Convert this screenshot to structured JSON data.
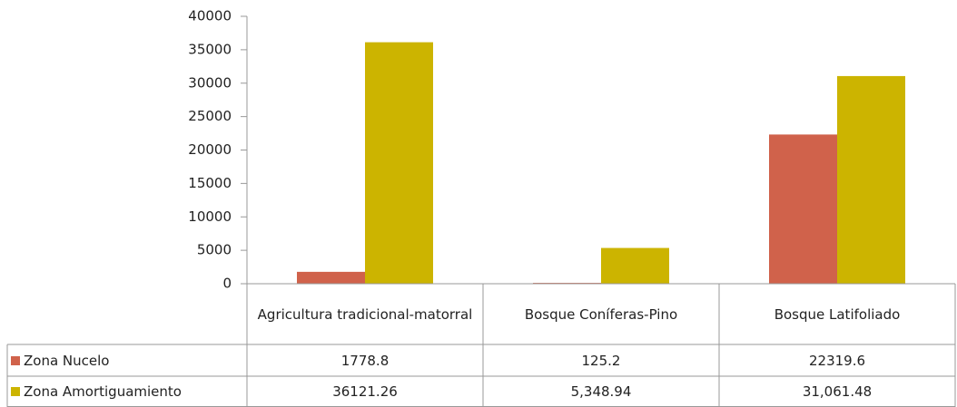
{
  "chart_data": {
    "type": "bar",
    "categories": [
      "Agricultura tradicional-matorral",
      "Bosque Coníferas-Pino",
      "Bosque Latifoliado"
    ],
    "series": [
      {
        "name": "Zona Nucelo",
        "color": "#d0624b",
        "values": [
          1778.8,
          125.2,
          22319.6
        ]
      },
      {
        "name": "Zona Amortiguamiento",
        "color": "#ccb400",
        "values": [
          36121.26,
          5348.94,
          31061.48
        ],
        "value_labels": [
          "36121.26",
          "5,348.94",
          "31,061.48"
        ]
      }
    ],
    "ylim": [
      0,
      40000
    ],
    "yticks": [
      0,
      5000,
      10000,
      15000,
      20000,
      25000,
      30000,
      35000,
      40000
    ],
    "grid": false
  }
}
